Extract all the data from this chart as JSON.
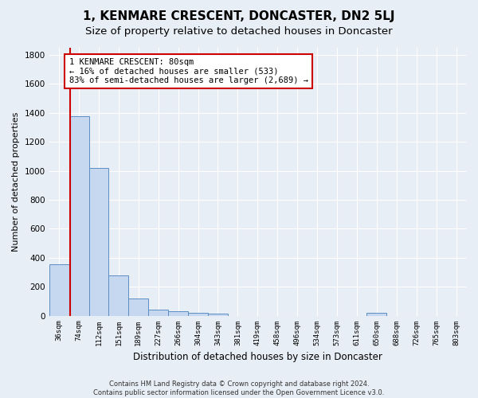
{
  "title": "1, KENMARE CRESCENT, DONCASTER, DN2 5LJ",
  "subtitle": "Size of property relative to detached houses in Doncaster",
  "xlabel": "Distribution of detached houses by size in Doncaster",
  "ylabel": "Number of detached properties",
  "footer_line1": "Contains HM Land Registry data © Crown copyright and database right 2024.",
  "footer_line2": "Contains public sector information licensed under the Open Government Licence v3.0.",
  "bar_labels": [
    "36sqm",
    "74sqm",
    "112sqm",
    "151sqm",
    "189sqm",
    "227sqm",
    "266sqm",
    "304sqm",
    "343sqm",
    "381sqm",
    "419sqm",
    "458sqm",
    "496sqm",
    "534sqm",
    "573sqm",
    "611sqm",
    "650sqm",
    "688sqm",
    "726sqm",
    "765sqm",
    "803sqm"
  ],
  "bar_values": [
    355,
    1380,
    1020,
    280,
    120,
    40,
    30,
    20,
    15,
    0,
    0,
    0,
    0,
    0,
    0,
    0,
    20,
    0,
    0,
    0,
    0
  ],
  "bar_color": "#c5d8f0",
  "bar_edge_color": "#5b8ec4",
  "property_line_x": 0.575,
  "property_size": "80sqm",
  "annotation_text_line1": "1 KENMARE CRESCENT: 80sqm",
  "annotation_text_line2": "← 16% of detached houses are smaller (533)",
  "annotation_text_line3": "83% of semi-detached houses are larger (2,689) →",
  "annotation_box_color": "#ffffff",
  "annotation_border_color": "#cc0000",
  "vline_color": "#cc0000",
  "ylim": [
    0,
    1850
  ],
  "yticks": [
    0,
    200,
    400,
    600,
    800,
    1000,
    1200,
    1400,
    1600,
    1800
  ],
  "background_color": "#e8eef5",
  "plot_bg_color": "#e8eef5",
  "grid_color": "#ffffff",
  "title_fontsize": 11,
  "subtitle_fontsize": 9.5
}
